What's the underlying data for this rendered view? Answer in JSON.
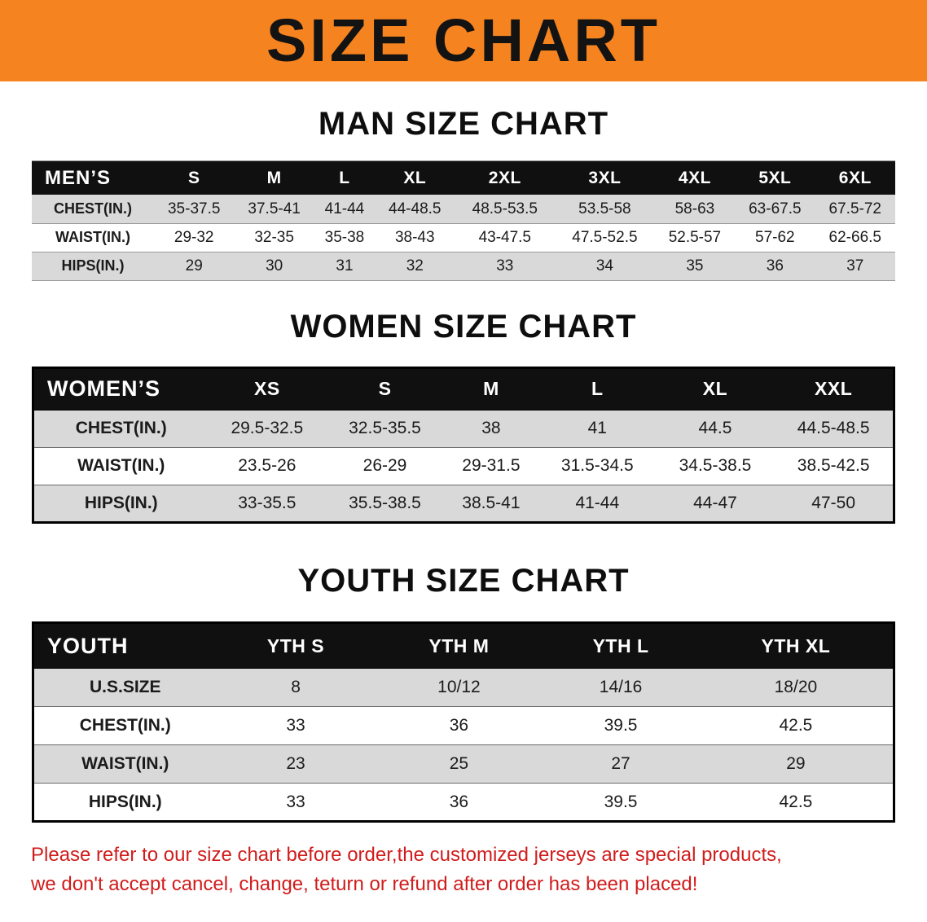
{
  "banner": {
    "title": "SIZE CHART"
  },
  "colors": {
    "banner_bg": "#f5831f",
    "header_bg": "#101010",
    "stripe": "#d9d9d9",
    "disclaimer": "#d01c1c"
  },
  "sections": [
    {
      "heading": "MAN SIZE CHART",
      "table": {
        "label": "MEN’S",
        "columns": [
          "S",
          "M",
          "L",
          "XL",
          "2XL",
          "3XL",
          "4XL",
          "5XL",
          "6XL"
        ],
        "rows": [
          {
            "label": "CHEST(IN.)",
            "values": [
              "35-37.5",
              "37.5-41",
              "41-44",
              "44-48.5",
              "48.5-53.5",
              "53.5-58",
              "58-63",
              "63-67.5",
              "67.5-72"
            ]
          },
          {
            "label": "WAIST(IN.)",
            "values": [
              "29-32",
              "32-35",
              "35-38",
              "38-43",
              "43-47.5",
              "47.5-52.5",
              "52.5-57",
              "57-62",
              "62-66.5"
            ]
          },
          {
            "label": "HIPS(IN.)",
            "values": [
              "29",
              "30",
              "31",
              "32",
              "33",
              "34",
              "35",
              "36",
              "37"
            ]
          }
        ]
      }
    },
    {
      "heading": "WOMEN SIZE CHART",
      "table": {
        "label": "WOMEN’S",
        "columns": [
          "XS",
          "S",
          "M",
          "L",
          "XL",
          "XXL"
        ],
        "rows": [
          {
            "label": "CHEST(IN.)",
            "values": [
              "29.5-32.5",
              "32.5-35.5",
              "38",
              "41",
              "44.5",
              "44.5-48.5"
            ]
          },
          {
            "label": "WAIST(IN.)",
            "values": [
              "23.5-26",
              "26-29",
              "29-31.5",
              "31.5-34.5",
              "34.5-38.5",
              "38.5-42.5"
            ]
          },
          {
            "label": "HIPS(IN.)",
            "values": [
              "33-35.5",
              "35.5-38.5",
              "38.5-41",
              "41-44",
              "44-47",
              "47-50"
            ]
          }
        ]
      }
    },
    {
      "heading": "YOUTH SIZE CHART",
      "table": {
        "label": "YOUTH",
        "columns": [
          "YTH S",
          "YTH M",
          "YTH L",
          "YTH XL"
        ],
        "rows": [
          {
            "label": "U.S.SIZE",
            "values": [
              "8",
              "10/12",
              "14/16",
              "18/20"
            ]
          },
          {
            "label": "CHEST(IN.)",
            "values": [
              "33",
              "36",
              "39.5",
              "42.5"
            ]
          },
          {
            "label": "WAIST(IN.)",
            "values": [
              "23",
              "25",
              "27",
              "29"
            ]
          },
          {
            "label": "HIPS(IN.)",
            "values": [
              "33",
              "36",
              "39.5",
              "42.5"
            ]
          }
        ]
      }
    }
  ],
  "disclaimer": {
    "line1": "Please refer to our size chart before order,the customized jerseys are special products,",
    "line2": "we don't accept cancel, change, teturn or refund after order has been placed!"
  }
}
